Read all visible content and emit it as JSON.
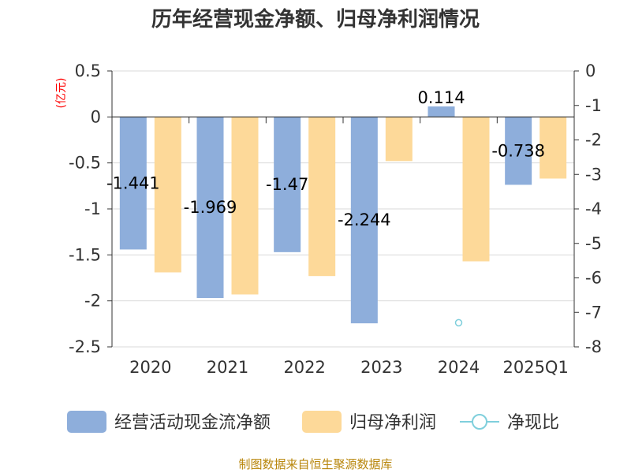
{
  "title": "历年经营现金净额、归母净利润情况",
  "source": "制图数据来自恒生聚源数据库",
  "chart_data": {
    "type": "bar",
    "categories": [
      "2020",
      "2021",
      "2022",
      "2023",
      "2024",
      "2025Q1"
    ],
    "y_left": {
      "unit": "(亿元)",
      "ylim": [
        -2.5,
        0.5
      ],
      "ticks": [
        "0.5",
        "0",
        "-0.5",
        "-1",
        "-1.5",
        "-2",
        "-2.5"
      ],
      "tick_values": [
        0.5,
        0,
        -0.5,
        -1,
        -1.5,
        -2,
        -2.5
      ]
    },
    "y_right": {
      "ylim": [
        -8,
        0
      ],
      "ticks": [
        "0",
        "-1",
        "-2",
        "-3",
        "-4",
        "-5",
        "-6",
        "-7",
        "-8"
      ],
      "tick_values": [
        0,
        -1,
        -2,
        -3,
        -4,
        -5,
        -6,
        -7,
        -8
      ]
    },
    "series": [
      {
        "name": "经营活动现金流净额",
        "axis": "left",
        "color": "#8eaedb",
        "values": [
          -1.441,
          -1.969,
          -1.47,
          -2.244,
          0.114,
          -0.738
        ],
        "labels": [
          "-1.441",
          "-1.969",
          "-1.47",
          "-2.244",
          "0.114",
          "-0.738"
        ]
      },
      {
        "name": "归母净利润",
        "axis": "left",
        "color": "#fdd999",
        "values": [
          -1.69,
          -1.93,
          -1.73,
          -0.48,
          -1.57,
          -0.67
        ]
      },
      {
        "name": "净现比",
        "axis": "right",
        "color": "#7fcfdc",
        "type": "line",
        "values": [
          null,
          null,
          null,
          null,
          -7.3,
          null
        ]
      }
    ],
    "grid": true,
    "legend_position": "bottom"
  }
}
